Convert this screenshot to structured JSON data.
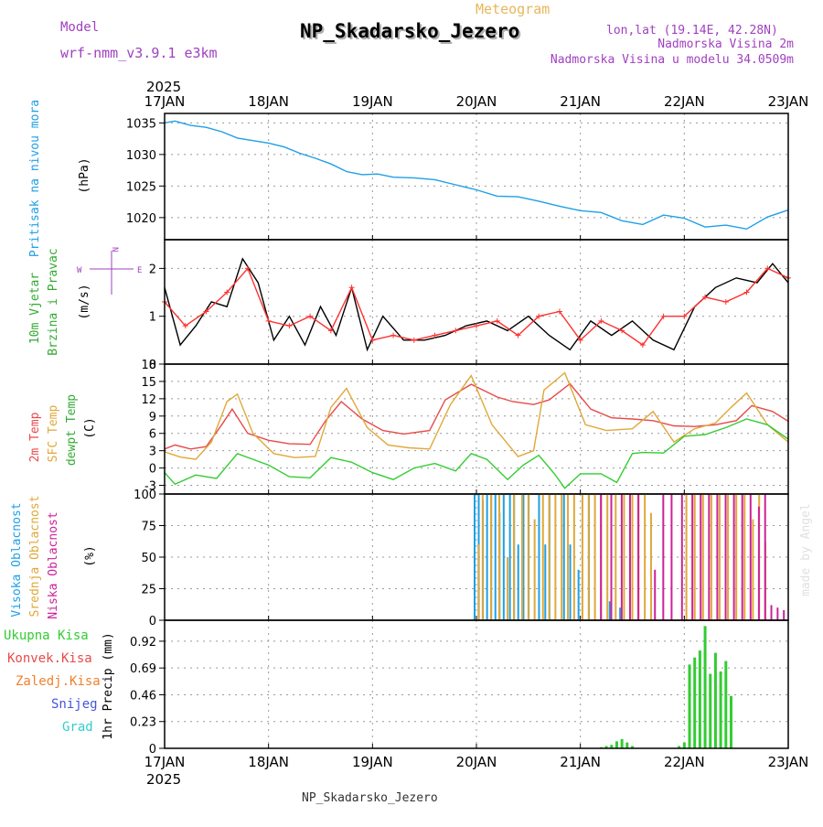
{
  "header": {
    "model_label": "Model",
    "model_name": "wrf-nmm_v3.9.1 e3km",
    "product": "Meteogram",
    "station": "NP_Skadarsko_Jezero",
    "coords": "lon,lat (19.14E, 42.28N)",
    "elevation": "Nadmorska Visina 2m",
    "model_elevation": "Nadmorska Visina u modelu 34.0509m",
    "year_top": "2025",
    "year_bottom": "2025",
    "footer_station": "NP_Skadarsko_Jezero",
    "watermark": "made by Angel"
  },
  "colors": {
    "pressure": "#1ea0e6",
    "wind_speed": "#000000",
    "wind_speed_alt": "#ff3030",
    "temp_2m": "#e84a4a",
    "sfc_temp": "#e0a83a",
    "dewpoint": "#33cc33",
    "high_cloud": "#1ea0e6",
    "mid_cloud": "#e0a83a",
    "low_cloud": "#cc2299",
    "total_precip": "#33cc33"
  },
  "chart_data": [
    {
      "id": "pressure",
      "type": "line",
      "title": "Pritisak na nivou mora",
      "ylabel": "(hPa)",
      "x_days": [
        "17JAN",
        "18JAN",
        "19JAN",
        "20JAN",
        "21JAN",
        "22JAN",
        "23JAN"
      ],
      "ylim": [
        1016.5,
        1036.5
      ],
      "yticks": [
        1020,
        1025,
        1030,
        1035
      ],
      "series": [
        {
          "name": "MSLP",
          "x": [
            0,
            0.1,
            0.25,
            0.4,
            0.55,
            0.7,
            0.85,
            1.0,
            1.15,
            1.3,
            1.45,
            1.6,
            1.75,
            1.9,
            2.05,
            2.2,
            2.4,
            2.6,
            2.8,
            3.0,
            3.2,
            3.4,
            3.6,
            3.8,
            4.0,
            4.2,
            4.4,
            4.6,
            4.8,
            5.0,
            5.2,
            5.4,
            5.6,
            5.8,
            6.0
          ],
          "y": [
            1035,
            1035.3,
            1034.6,
            1034.3,
            1033.6,
            1032.6,
            1032.2,
            1031.8,
            1031.2,
            1030.2,
            1029.4,
            1028.5,
            1027.3,
            1026.8,
            1026.9,
            1026.4,
            1026.3,
            1026.0,
            1025.2,
            1024.4,
            1023.4,
            1023.3,
            1022.6,
            1021.8,
            1021.1,
            1020.8,
            1019.5,
            1018.9,
            1020.4,
            1019.9,
            1018.5,
            1018.8,
            1018.2,
            1020.1,
            1021.2
          ]
        }
      ]
    },
    {
      "id": "wind",
      "type": "line",
      "title": "10m Vjetar",
      "subtitle": "Brzina i Pravac",
      "ylabel": "(m/s)",
      "compass": [
        "W",
        "N",
        "E"
      ],
      "x_days": [
        "17JAN",
        "18JAN",
        "19JAN",
        "20JAN",
        "21JAN",
        "22JAN",
        "23JAN"
      ],
      "ylim": [
        0,
        2.6
      ],
      "yticks": [
        0,
        1,
        2
      ],
      "series": [
        {
          "name": "Speed",
          "x": [
            0,
            0.15,
            0.3,
            0.45,
            0.6,
            0.75,
            0.9,
            1.05,
            1.2,
            1.35,
            1.5,
            1.65,
            1.8,
            1.95,
            2.1,
            2.3,
            2.5,
            2.7,
            2.9,
            3.1,
            3.3,
            3.5,
            3.7,
            3.9,
            4.1,
            4.3,
            4.5,
            4.7,
            4.9,
            5.1,
            5.3,
            5.5,
            5.7,
            5.85,
            6.0
          ],
          "y": [
            1.6,
            0.4,
            0.8,
            1.3,
            1.2,
            2.2,
            1.7,
            0.5,
            1.0,
            0.4,
            1.2,
            0.6,
            1.6,
            0.3,
            1.0,
            0.5,
            0.5,
            0.6,
            0.8,
            0.9,
            0.7,
            1.0,
            0.6,
            0.3,
            0.9,
            0.6,
            0.9,
            0.5,
            0.3,
            1.2,
            1.6,
            1.8,
            1.7,
            2.1,
            1.7
          ]
        },
        {
          "name": "Speed (alt)",
          "x": [
            0,
            0.2,
            0.4,
            0.6,
            0.8,
            1.0,
            1.2,
            1.4,
            1.6,
            1.8,
            2.0,
            2.2,
            2.4,
            2.6,
            2.8,
            3.0,
            3.2,
            3.4,
            3.6,
            3.8,
            4.0,
            4.2,
            4.4,
            4.6,
            4.8,
            5.0,
            5.2,
            5.4,
            5.6,
            5.8,
            6.0
          ],
          "y": [
            1.3,
            0.8,
            1.1,
            1.5,
            2.0,
            0.9,
            0.8,
            1.0,
            0.7,
            1.6,
            0.5,
            0.6,
            0.5,
            0.6,
            0.7,
            0.8,
            0.9,
            0.6,
            1.0,
            1.1,
            0.5,
            0.9,
            0.7,
            0.4,
            1.0,
            1.0,
            1.4,
            1.3,
            1.5,
            2.0,
            1.8
          ]
        }
      ]
    },
    {
      "id": "temperature",
      "type": "line",
      "title": "2m Temp",
      "subtitle": "SFC Temp",
      "subtitle2": "dewpt Temp",
      "ylabel": "(C)",
      "x_days": [
        "17JAN",
        "18JAN",
        "19JAN",
        "20JAN",
        "21JAN",
        "22JAN",
        "23JAN"
      ],
      "ylim": [
        -4.5,
        18
      ],
      "yticks": [
        -3,
        0,
        3,
        6,
        9,
        12,
        15,
        18
      ],
      "series": [
        {
          "name": "2m Temp",
          "x": [
            0,
            0.1,
            0.25,
            0.4,
            0.55,
            0.65,
            0.8,
            1.0,
            1.2,
            1.4,
            1.55,
            1.7,
            1.9,
            2.1,
            2.3,
            2.55,
            2.7,
            2.95,
            3.2,
            3.35,
            3.55,
            3.7,
            3.9,
            4.1,
            4.3,
            4.5,
            4.7,
            4.9,
            5.1,
            5.3,
            5.5,
            5.65,
            5.85,
            6.0
          ],
          "y": [
            3.3,
            4.0,
            3.3,
            3.7,
            7.5,
            10.2,
            6.0,
            4.8,
            4.2,
            4.1,
            8.2,
            11.5,
            8.5,
            6.5,
            5.9,
            6.5,
            11.8,
            14.5,
            12.3,
            11.5,
            11.0,
            11.8,
            14.6,
            10.2,
            8.7,
            8.5,
            8.2,
            7.3,
            7.2,
            7.5,
            8.2,
            10.8,
            9.8,
            8.1
          ]
        },
        {
          "name": "SFC Temp",
          "x": [
            0,
            0.15,
            0.3,
            0.45,
            0.6,
            0.7,
            0.85,
            1.05,
            1.25,
            1.45,
            1.6,
            1.75,
            1.95,
            2.15,
            2.35,
            2.55,
            2.75,
            2.95,
            3.15,
            3.4,
            3.55,
            3.65,
            3.85,
            4.05,
            4.25,
            4.5,
            4.7,
            4.9,
            5.1,
            5.3,
            5.45,
            5.6,
            5.8,
            6.0
          ],
          "y": [
            2.8,
            1.9,
            1.5,
            4.5,
            11.5,
            12.8,
            6.0,
            2.5,
            1.8,
            2.0,
            10.5,
            13.8,
            7.0,
            4.0,
            3.5,
            3.3,
            11.0,
            16.0,
            7.5,
            2.0,
            3.0,
            13.5,
            16.5,
            7.5,
            6.5,
            6.8,
            9.8,
            4.5,
            6.8,
            7.8,
            10.5,
            13.0,
            7.5,
            4.5
          ]
        },
        {
          "name": "dewpt Temp",
          "x": [
            0,
            0.1,
            0.3,
            0.5,
            0.7,
            0.85,
            1.0,
            1.2,
            1.4,
            1.6,
            1.8,
            2.0,
            2.2,
            2.4,
            2.6,
            2.8,
            2.95,
            3.1,
            3.3,
            3.45,
            3.6,
            3.75,
            3.85,
            4.0,
            4.2,
            4.35,
            4.5,
            4.6,
            4.8,
            5.0,
            5.2,
            5.4,
            5.6,
            5.8,
            6.0
          ],
          "y": [
            -0.8,
            -2.8,
            -1.2,
            -1.8,
            2.5,
            1.5,
            0.5,
            -1.5,
            -1.7,
            1.8,
            1.0,
            -0.8,
            -2.0,
            0.0,
            0.8,
            -0.5,
            2.5,
            1.5,
            -2.0,
            0.5,
            2.2,
            -1.0,
            -3.5,
            -1.0,
            -1.0,
            -2.5,
            2.5,
            2.7,
            2.6,
            5.5,
            5.8,
            7.0,
            8.5,
            7.5,
            5.0
          ]
        }
      ]
    },
    {
      "id": "clouds",
      "type": "bar",
      "title": "Visoka Oblacnost",
      "subtitle": "Srednja Oblacnost",
      "subtitle2": "Niska Oblacnost",
      "ylabel": "(%)",
      "x_days": [
        "17JAN",
        "18JAN",
        "19JAN",
        "20JAN",
        "21JAN",
        "22JAN",
        "23JAN"
      ],
      "ylim": [
        0,
        100
      ],
      "yticks": [
        0,
        25,
        50,
        75,
        100
      ],
      "series": [
        {
          "name": "Visoka",
          "x": [
            3.0,
            3.04,
            3.08,
            3.12,
            3.16,
            3.2,
            3.24,
            3.28,
            3.34,
            3.38,
            3.42,
            3.47,
            3.52,
            3.62,
            3.68,
            3.72,
            3.86,
            3.92,
            4.0,
            4.1,
            4.3,
            4.4
          ],
          "y": [
            100,
            100,
            95,
            100,
            100,
            100,
            85,
            100,
            100,
            100,
            60,
            100,
            100,
            100,
            60,
            100,
            100,
            60,
            40,
            100,
            15,
            10
          ]
        },
        {
          "name": "Srednja",
          "x": [
            3.02,
            3.06,
            3.14,
            3.22,
            3.3,
            3.36,
            3.44,
            3.5,
            3.56,
            3.64,
            3.7,
            3.76,
            3.82,
            3.88,
            3.94,
            4.02,
            4.08,
            4.14,
            4.2,
            4.26,
            4.34,
            4.42,
            4.5,
            4.56,
            4.62,
            4.68,
            5.02,
            5.1,
            5.18,
            5.26,
            5.34,
            5.42,
            5.5,
            5.58,
            5.66,
            5.72,
            5.78
          ],
          "y": [
            60,
            100,
            100,
            100,
            50,
            100,
            100,
            100,
            80,
            100,
            100,
            100,
            100,
            100,
            100,
            100,
            100,
            100,
            100,
            100,
            100,
            100,
            100,
            100,
            100,
            85,
            100,
            100,
            100,
            100,
            100,
            100,
            100,
            100,
            80,
            100,
            62
          ]
        },
        {
          "name": "Niska",
          "x": [
            4.18,
            4.28,
            4.38,
            4.46,
            4.54,
            4.7,
            4.78,
            4.86,
            4.96,
            5.06,
            5.14,
            5.22,
            5.3,
            5.38,
            5.46,
            5.54,
            5.62,
            5.7,
            5.76,
            5.82,
            5.88,
            5.94
          ],
          "y": [
            100,
            100,
            100,
            100,
            100,
            40,
            100,
            100,
            100,
            100,
            100,
            100,
            100,
            100,
            100,
            100,
            100,
            90,
            100,
            12,
            10,
            8
          ]
        }
      ]
    },
    {
      "id": "precip",
      "type": "bar",
      "title": "Ukupna Kisa",
      "labels": [
        "Ukupna Kisa",
        "Konvek.Kisa",
        "Zaledj.Kisa",
        "Snijeg",
        "Grad"
      ],
      "ylabel": "1hr Precip (mm)",
      "x_days": [
        "17JAN",
        "18JAN",
        "19JAN",
        "20JAN",
        "21JAN",
        "22JAN",
        "23JAN"
      ],
      "ylim": [
        0,
        1.1
      ],
      "yticks": [
        0,
        0.23,
        0.46,
        0.69,
        0.92
      ],
      "series": [
        {
          "name": "Ukupna Kisa",
          "x": [
            4.2,
            4.25,
            4.3,
            4.35,
            4.4,
            4.45,
            4.5,
            4.95,
            5.0,
            5.05,
            5.1,
            5.15,
            5.2,
            5.25,
            5.3,
            5.35,
            5.4,
            5.45
          ],
          "y": [
            0.01,
            0.02,
            0.03,
            0.06,
            0.08,
            0.05,
            0.02,
            0.02,
            0.05,
            0.72,
            0.78,
            0.84,
            1.05,
            0.64,
            0.82,
            0.66,
            0.75,
            0.45
          ]
        }
      ]
    }
  ]
}
